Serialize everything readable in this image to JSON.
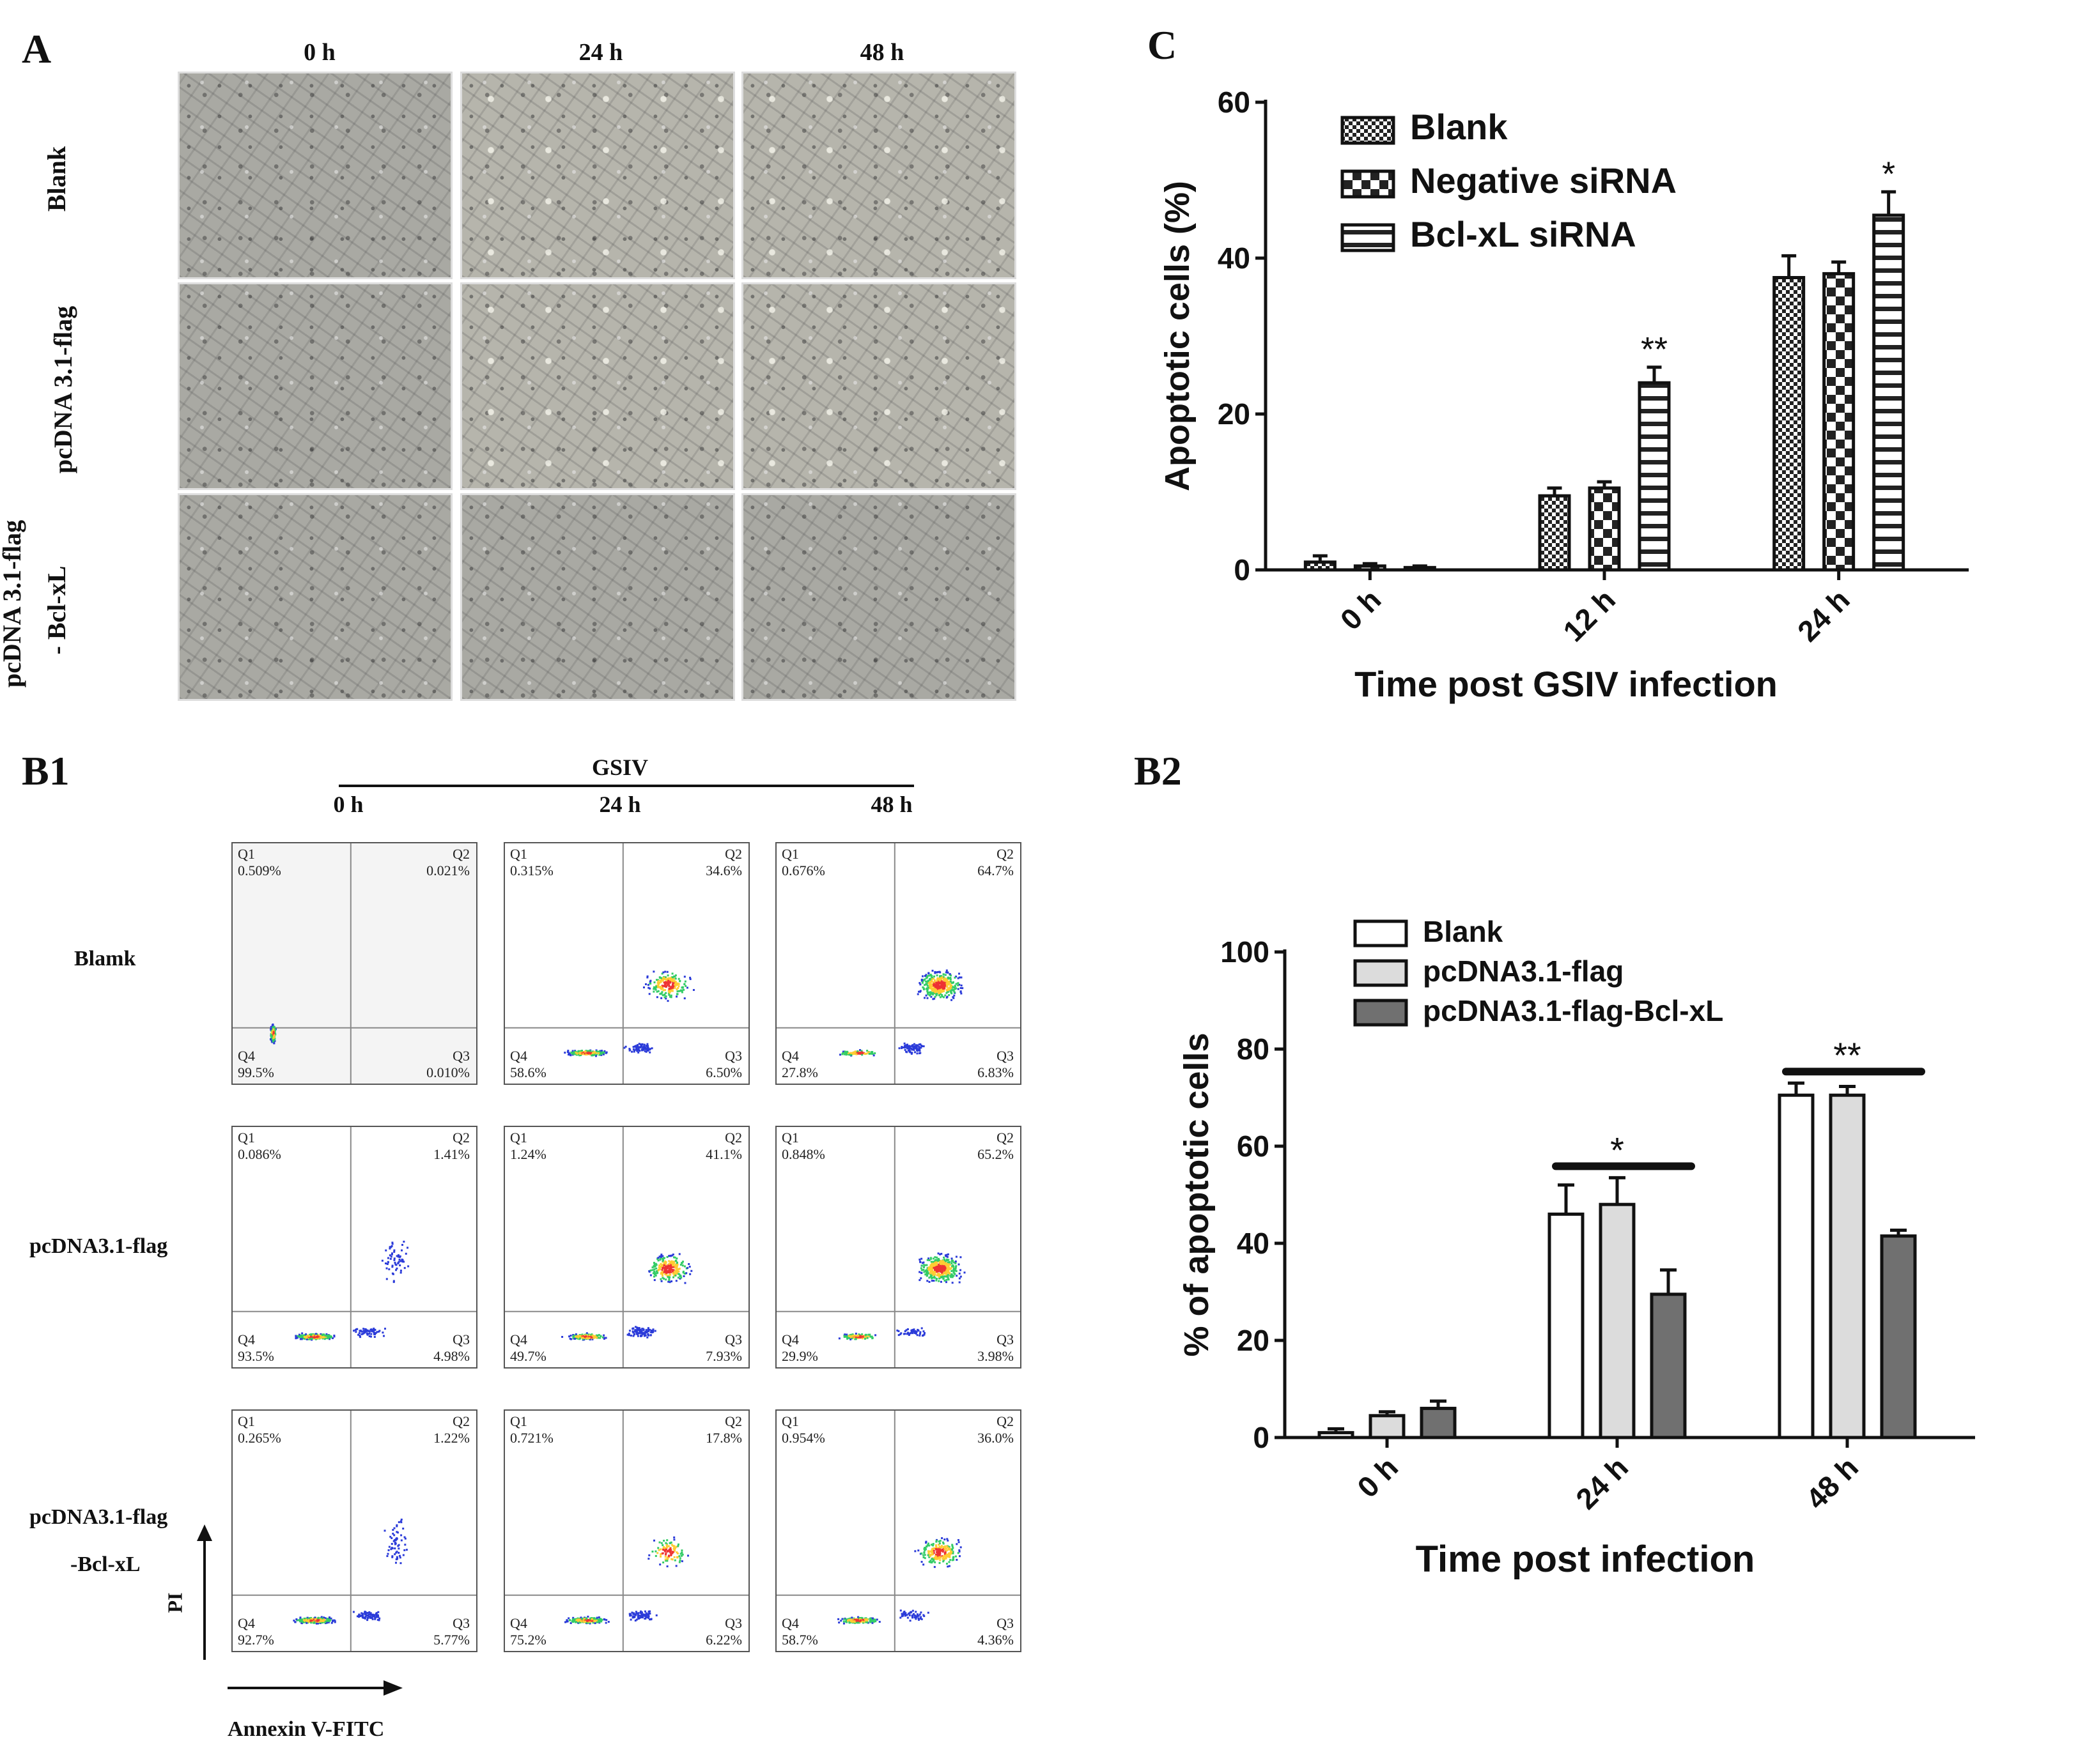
{
  "panels": {
    "A": {
      "letter": "A",
      "time_labels": [
        "0 h",
        "24 h",
        "48 h"
      ],
      "row_labels": [
        "Blank",
        "pcDNA 3.1-flag",
        "pcDNA 3.1-flag",
        "- Bcl-xL"
      ]
    },
    "B1": {
      "letter": "B1",
      "virus_label": "GSIV",
      "time_labels": [
        "0 h",
        "24 h",
        "48 h"
      ],
      "row_labels": [
        "Blamk",
        "pcDNA3.1-flag",
        "pcDNA3.1-flag",
        "-Bcl-xL"
      ],
      "y_axis": "PI",
      "x_axis": "Annexin V-FITC",
      "quadrant_names": [
        "Q1",
        "Q2",
        "Q3",
        "Q4"
      ],
      "plots": [
        [
          {
            "q1": "0.509%",
            "q2": "0.021%",
            "q3": "0.010%",
            "q4": "99.5%"
          },
          {
            "q1": "0.315%",
            "q2": "34.6%",
            "q3": "6.50%",
            "q4": "58.6%"
          },
          {
            "q1": "0.676%",
            "q2": "64.7%",
            "q3": "6.83%",
            "q4": "27.8%"
          }
        ],
        [
          {
            "q1": "0.086%",
            "q2": "1.41%",
            "q3": "4.98%",
            "q4": "93.5%"
          },
          {
            "q1": "1.24%",
            "q2": "41.1%",
            "q3": "7.93%",
            "q4": "49.7%"
          },
          {
            "q1": "0.848%",
            "q2": "65.2%",
            "q3": "3.98%",
            "q4": "29.9%"
          }
        ],
        [
          {
            "q1": "0.265%",
            "q2": "1.22%",
            "q3": "5.77%",
            "q4": "92.7%"
          },
          {
            "q1": "0.721%",
            "q2": "17.8%",
            "q3": "6.22%",
            "q4": "75.2%"
          },
          {
            "q1": "0.954%",
            "q2": "36.0%",
            "q3": "4.36%",
            "q4": "58.7%"
          }
        ]
      ]
    },
    "C": {
      "letter": "C"
    },
    "B2": {
      "letter": "B2"
    }
  },
  "chart_data": [
    {
      "id": "C",
      "type": "bar",
      "title": "",
      "xlabel": "Time post GSIV infection",
      "ylabel": "Apoptotic cells (%)",
      "ylim": [
        0,
        60
      ],
      "yticks": [
        0,
        20,
        40,
        60
      ],
      "categories": [
        "0 h",
        "12 h",
        "24 h"
      ],
      "series": [
        {
          "name": "Blank",
          "pattern": "dense-check",
          "values": [
            1.0,
            9.5,
            37.5
          ],
          "errors": [
            0.8,
            1.0,
            2.8
          ]
        },
        {
          "name": "Negative siRNA",
          "pattern": "checker",
          "values": [
            0.5,
            10.5,
            38.0
          ],
          "errors": [
            0.3,
            0.8,
            1.5
          ]
        },
        {
          "name": "Bcl-xL siRNA",
          "pattern": "horizontal-stripes",
          "values": [
            0.3,
            24.0,
            45.5
          ],
          "errors": [
            0.2,
            2.0,
            3.0
          ]
        }
      ],
      "annotations": [
        {
          "category": "12 h",
          "series": "Bcl-xL siRNA",
          "text": "**"
        },
        {
          "category": "24 h",
          "series": "Bcl-xL siRNA",
          "text": "*"
        }
      ],
      "legend_position": "top-left"
    },
    {
      "id": "B2",
      "type": "bar",
      "title": "",
      "xlabel": "Time post infection",
      "ylabel": "% of apoptotic cells",
      "ylim": [
        0,
        100
      ],
      "yticks": [
        0,
        20,
        40,
        60,
        80,
        100
      ],
      "categories": [
        "0 h",
        "24 h",
        "48 h"
      ],
      "series": [
        {
          "name": "Blank",
          "color": "#ffffff",
          "values": [
            1.0,
            46.0,
            70.5
          ],
          "errors": [
            0.8,
            6.0,
            2.5
          ]
        },
        {
          "name": "pcDNA3.1-flag",
          "color": "#dcdcdc",
          "values": [
            4.5,
            48.0,
            70.5
          ],
          "errors": [
            0.8,
            5.5,
            1.8
          ]
        },
        {
          "name": "pcDNA3.1-flag-Bcl-xL",
          "color": "#707070",
          "values": [
            6.0,
            29.5,
            41.5
          ],
          "errors": [
            1.5,
            5.0,
            1.2
          ]
        }
      ],
      "annotations": [
        {
          "category": "24 h",
          "text": "*"
        },
        {
          "category": "48 h",
          "text": "**"
        }
      ],
      "legend_position": "top-left"
    }
  ]
}
